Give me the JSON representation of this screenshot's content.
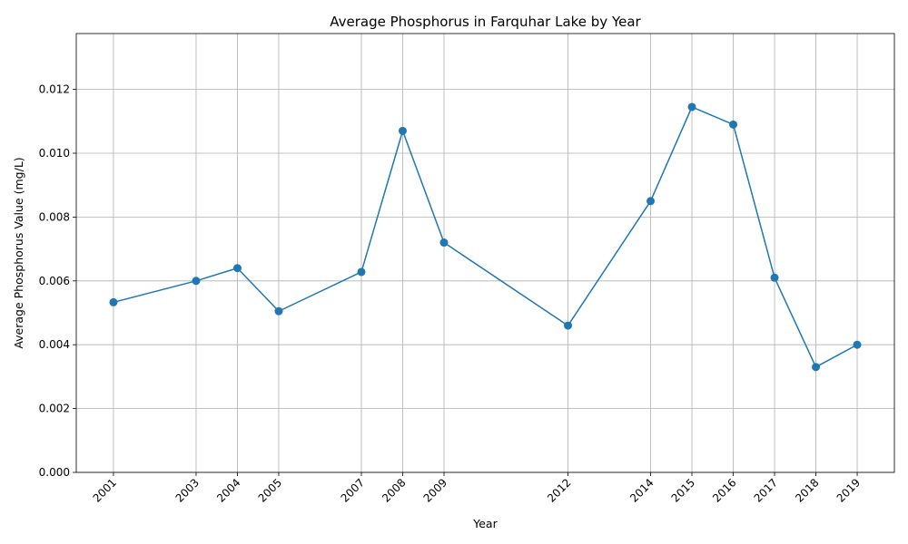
{
  "chart_data": {
    "type": "line",
    "title": "Average Phosphorus in Farquhar Lake by Year",
    "xlabel": "Year",
    "ylabel": "Average Phosphorus Value (mg/L)",
    "x": [
      2001,
      2003,
      2004,
      2005,
      2007,
      2008,
      2009,
      2012,
      2014,
      2015,
      2016,
      2017,
      2018,
      2019
    ],
    "x_tick_labels": [
      "2001",
      "2003",
      "2004",
      "2005",
      "2007",
      "2008",
      "2009",
      "2012",
      "2014",
      "2015",
      "2016",
      "2017",
      "2018",
      "2019"
    ],
    "series": [
      {
        "values": [
          0.00533,
          0.006,
          0.0064,
          0.00505,
          0.00628,
          0.0107,
          0.0072,
          0.0046,
          0.0085,
          0.01145,
          0.0109,
          0.0061,
          0.0033,
          0.004
        ],
        "color": "#1f77b4",
        "marker": "circle"
      }
    ],
    "xlim": [
      2000.1,
      2019.9
    ],
    "ylim": [
      0,
      0.01375
    ],
    "y_ticks": [
      0.0,
      0.002,
      0.004,
      0.006,
      0.008,
      0.01,
      0.012
    ],
    "y_tick_labels": [
      "0.000",
      "0.002",
      "0.004",
      "0.006",
      "0.008",
      "0.010",
      "0.012"
    ],
    "grid": true,
    "legend": "none"
  }
}
